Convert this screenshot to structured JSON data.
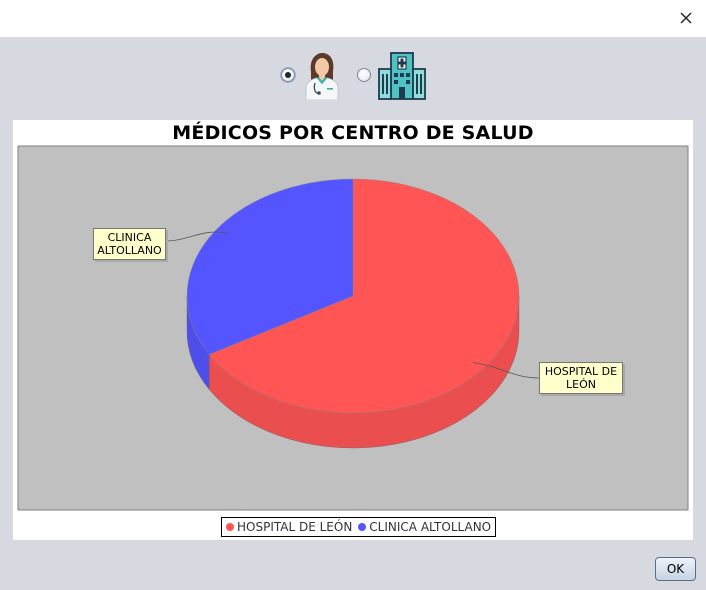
{
  "dialog": {
    "ok_label": "OK",
    "close_icon": "close-icon"
  },
  "selector": {
    "options": [
      {
        "name": "doctor-icon",
        "selected": true
      },
      {
        "name": "hospital-icon",
        "selected": false
      }
    ]
  },
  "colors": {
    "hospital": "#ff5555",
    "clinica": "#5555ff",
    "plot_background": "#c0c0c0",
    "label_background": "#ffffcc"
  },
  "chart_data": {
    "type": "pie",
    "title": "MÉDICOS POR CENTRO DE SALUD",
    "slices": [
      {
        "label": "HOSPITAL DE LEÓN",
        "value": 2,
        "color": "#ff5555"
      },
      {
        "label": "CLINICA ALTOLLANO",
        "value": 1,
        "color": "#5555ff"
      }
    ],
    "slice_labels": [
      {
        "lines": "HOSPITAL DE\nLEÓN"
      },
      {
        "lines": "CLINICA\nALTOLLANO"
      }
    ],
    "legend": {
      "position": "bottom",
      "items": [
        "HOSPITAL DE LEÓN",
        "CLINICA ALTOLLANO"
      ]
    },
    "style": "3d"
  }
}
